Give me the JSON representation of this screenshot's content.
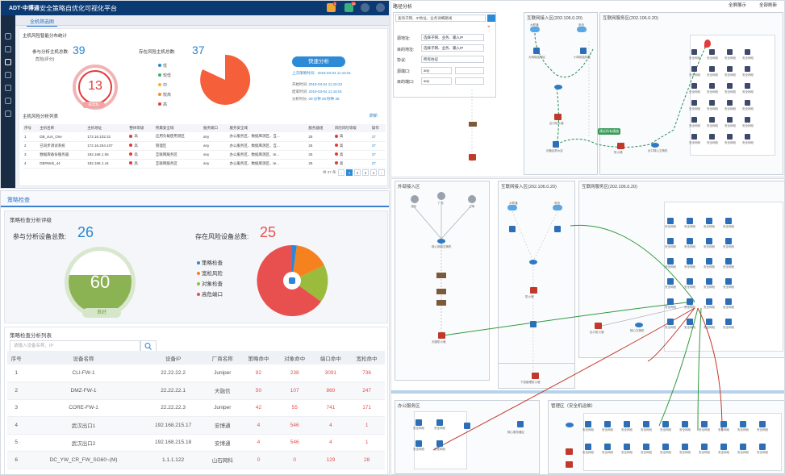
{
  "platform": {
    "logo": "ADT·中博通",
    "title": "安全策略自优化可视化平台",
    "tab": "全机筛选图",
    "badges": [
      "3",
      "38"
    ]
  },
  "tl": {
    "section1": "主机风险智能分布统计",
    "hosts_label": "参与分析主机总数:",
    "hosts_value": "39",
    "risk_hosts_label": "存在风险主机总数:",
    "risk_hosts_value": "37",
    "gauge_value": "13",
    "gauge_badge": "非常危",
    "gauge_sub": "危险(评分)",
    "legend": [
      {
        "label": "低",
        "color": "#2a86d1"
      },
      {
        "label": "较低",
        "color": "#3ab07a"
      },
      {
        "label": "中",
        "color": "#e9b93a"
      },
      {
        "label": "较高",
        "color": "#f08a3c"
      },
      {
        "label": "高",
        "color": "#e23b3b"
      }
    ],
    "analyze_button": "快速分析",
    "last_time_label": "上次策略时间：2019-03-04 11:16:01",
    "time_rows": [
      {
        "label": "开始时间:",
        "value": "2019-03-04 11:15:23"
      },
      {
        "label": "结束时间:",
        "value": "2019-03-04 11:16:01"
      },
      {
        "label": "分析时长:",
        "value": "00:分钟 00:秒钟 38"
      }
    ],
    "section2": "主机风险分析列表",
    "refresh": "刷新",
    "columns": [
      "序号",
      "主机名称",
      "主机地址",
      "整体等级",
      "所属安全域",
      "服务端口",
      "服务安全域",
      "服务安全域",
      "服务器组",
      "风险风险等级",
      "风险风险等级",
      "操作"
    ],
    "rows": [
      [
        "1",
        "DB_xUs_One",
        "172.16.102.31",
        "高",
        "应用负载使用测区",
        "any",
        "办公服务区、数据库测区、互...",
        "25",
        "高",
        "37"
      ],
      [
        "2",
        "已同步测试系统",
        "172.16.254.107",
        "高",
        "管理区",
        "any",
        "办公服务区、数据库测区、互...",
        "25",
        "高",
        "37"
      ],
      [
        "3",
        "数据库备份服务器",
        "192.168.1.55",
        "高",
        "互联网服务区",
        "any",
        "办公服务区、数据库测区、te...",
        "25",
        "高",
        "37"
      ],
      [
        "4",
        "DB#Web_44",
        "192.168.1.44",
        "高",
        "互联网服务区",
        "any",
        "办公服务区、数据库测区、te...",
        "25",
        "高",
        "37"
      ]
    ],
    "pagination": {
      "total": "共 37 条",
      "pages": [
        "1",
        "2",
        "3",
        "4"
      ]
    }
  },
  "bl": {
    "tab": "策略检查",
    "section1": "策略检查分析评级",
    "devices_label": "参与分析设备总数:",
    "devices_value": "26",
    "risk_devices_label": "存在风险设备总数:",
    "risk_devices_value": "25",
    "score": "60",
    "score_badge": "良好",
    "legend": [
      {
        "label": "策略检查",
        "color": "#2f86d6"
      },
      {
        "label": "宽松风险",
        "color": "#f5821f"
      },
      {
        "label": "对象检查",
        "color": "#9bbb3c"
      },
      {
        "label": "高危端口",
        "color": "#e8504f"
      }
    ],
    "section2": "策略检查分析列表",
    "search_placeholder": "请输入设备名称、IP",
    "columns": [
      "序号",
      "设备名称",
      "设备IP",
      "厂商名称",
      "策略命中",
      "对象命中",
      "端口命中",
      "宽松命中"
    ],
    "rows": [
      [
        "1",
        "CLI-FW-1",
        "22.22.22.2",
        "Juniper",
        "82",
        "238",
        "3091",
        "736"
      ],
      [
        "2",
        "DMZ-FW-1",
        "22.22.22.1",
        "天融信",
        "50",
        "107",
        "860",
        "247"
      ],
      [
        "3",
        "CORE-FW-1",
        "22.22.22.3",
        "Juniper",
        "42",
        "55",
        "741",
        "171"
      ],
      [
        "4",
        "武汉出口1",
        "192.168.215.17",
        "安博通",
        "4",
        "546",
        "4",
        "1"
      ],
      [
        "5",
        "武汉出口2",
        "192.168.215.18",
        "安博通",
        "4",
        "546",
        "4",
        "1"
      ],
      [
        "6",
        "DC_YW_CR_FW_SG60~(M)",
        "1.1.1.122",
        "山石网科",
        "0",
        "0",
        "129",
        "28"
      ]
    ]
  },
  "tr": {
    "title": "路径分析",
    "fullscreen": "全屏展示",
    "refresh": "全部刷新",
    "search_placeholder": "查询子网、IP地址、业务详细路线",
    "form": [
      {
        "label": "源地址:",
        "value": "选择子网、业务、输入IP"
      },
      {
        "label": "目的地址:",
        "value": "选择子网、业务、输入IP"
      },
      {
        "label": "协议:",
        "value": "所有协议"
      },
      {
        "label": "源端口:",
        "value": "any"
      },
      {
        "label": "目的端口:",
        "value": "any"
      }
    ],
    "zone_a": "互联网接入区(202.106.0.20)",
    "zone_b": "互联网服务区(202.106.0.20)",
    "path_tag": "建议所有通道",
    "dev_label": "安全网段",
    "labels": [
      "大联通",
      "电信",
      "大网络结构区",
      "小网络结构区",
      "设备结构大区",
      "出口防火墙",
      "防火墙",
      "出口核心交换机",
      "联通"
    ]
  },
  "br": {
    "zone_ext": "外部接入区",
    "zone_a": "互联网接入区(202.106.0.20)",
    "zone_b": "互联网服务区(202.106.0.20)",
    "zone_office": "办公服务区",
    "zone_mgmt": "管理区（安全机运维）",
    "isps": [
      "北京",
      "广东",
      "上海"
    ],
    "labels": [
      "核心网络交换机",
      "天融防火墙",
      "大联通",
      "电信",
      "防火墙",
      "出口防火墙",
      "核心交换机",
      "下游管理防火墙",
      "安全网段",
      "核心服务器区"
    ]
  }
}
